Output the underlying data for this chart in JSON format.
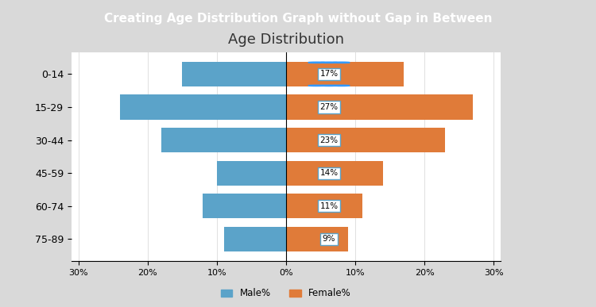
{
  "title": "Age Distribution",
  "header": "Creating Age Distribution Graph without Gap in Between",
  "age_groups": [
    "75-89",
    "60-74",
    "45-59",
    "30-44",
    "15-29",
    "0-14"
  ],
  "male_pct": [
    9,
    12,
    10,
    18,
    24,
    15
  ],
  "female_pct": [
    9,
    11,
    14,
    23,
    27,
    17
  ],
  "female_labels": [
    "9%",
    "11%",
    "14%",
    "23%",
    "27%",
    "17%"
  ],
  "bar_color_male": "#5BA3C9",
  "bar_color_female": "#E07B39",
  "xlim": [
    -0.31,
    0.31
  ],
  "xticks": [
    -0.3,
    -0.2,
    -0.1,
    0.0,
    0.1,
    0.2,
    0.3
  ],
  "xtick_labels": [
    "30%",
    "20%",
    "10%",
    "0%",
    "10%",
    "20%",
    "30%"
  ],
  "legend_male": "Male%",
  "legend_female": "Female%",
  "header_bg": "#2E75B6",
  "header_text_color": "#FFFFFF",
  "bg_color": "#FFFFFF",
  "panel_bg": "#F2F2F2",
  "annotation_bg": "#FFFFFF",
  "annotation_border": "#5BA3C9"
}
